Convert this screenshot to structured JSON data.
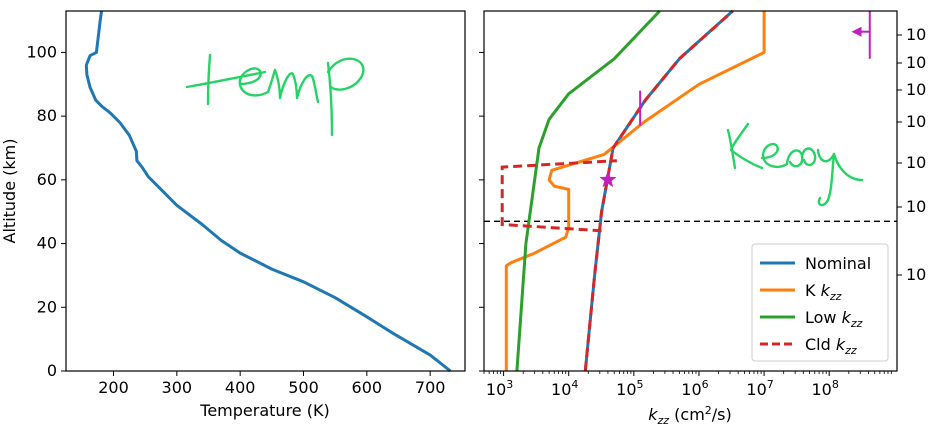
{
  "chart_data": [
    {
      "type": "line",
      "panel": "left",
      "xlabel": "Temperature (K)",
      "ylabel": "Altitude (km)",
      "xlim": [
        125,
        755
      ],
      "ylim": [
        0,
        113
      ],
      "xticks": [
        200,
        300,
        400,
        500,
        600,
        700
      ],
      "yticks": [
        0,
        20,
        40,
        60,
        80,
        100
      ],
      "annotation": "temp",
      "series": [
        {
          "color": "#1f77b4",
          "x": [
            732,
            700,
            640,
            600,
            550,
            500,
            450,
            400,
            370,
            340,
            300,
            270,
            255,
            245,
            237,
            236,
            225,
            210,
            195,
            182,
            172,
            163,
            158,
            157,
            163,
            173,
            176,
            179,
            181
          ],
          "y": [
            0,
            5,
            12,
            17,
            23,
            28,
            32,
            37,
            41,
            46,
            52,
            58,
            61,
            64,
            66,
            69,
            74,
            78,
            81,
            83,
            85,
            89,
            93,
            96,
            99,
            100,
            105,
            110,
            113
          ]
        }
      ]
    },
    {
      "type": "line",
      "panel": "right",
      "xlabel": "k_zz (cm²/s)",
      "xscale": "log",
      "xlim": [
        500,
        1100000000
      ],
      "ylim": [
        0,
        113
      ],
      "xticks": [
        1000,
        10000,
        100000,
        1000000,
        10000000,
        100000000
      ],
      "xtick_labels": [
        {
          "base": "10",
          "exp": "3"
        },
        {
          "base": "10",
          "exp": "4"
        },
        {
          "base": "10",
          "exp": "5"
        },
        {
          "base": "10",
          "exp": "6"
        },
        {
          "base": "10",
          "exp": "7"
        },
        {
          "base": "10",
          "exp": "8"
        }
      ],
      "right_tick_labels": [
        "10",
        "10",
        "10",
        "10",
        "10",
        "10",
        "10"
      ],
      "hline_altitude": 47,
      "annotation": "Keddy",
      "legend_position": "lower-right",
      "series": [
        {
          "name": "Nominal",
          "color": "#1f77b4",
          "dash": "solid",
          "x": [
            18000,
            25000,
            32000,
            48000,
            150000,
            500000,
            3300000
          ],
          "y": [
            0,
            30,
            50,
            70,
            85,
            98,
            113
          ]
        },
        {
          "name": "K k_zz",
          "color": "#ff7f0e",
          "dash": "solid",
          "x": [
            1100,
            1100,
            1300,
            3000,
            9000,
            10000,
            10000,
            6000,
            5000,
            5500,
            35000,
            140000,
            1000000,
            10000000,
            10000000
          ],
          "y": [
            0,
            33,
            34,
            37,
            42,
            45,
            57,
            58,
            60,
            63,
            68,
            78,
            90,
            100,
            113
          ]
        },
        {
          "name": "Low k_zz",
          "color": "#2ca02c",
          "dash": "solid",
          "x": [
            1600,
            2200,
            3500,
            5000,
            10000,
            50000,
            250000
          ],
          "y": [
            0,
            40,
            70,
            79,
            87,
            98,
            113
          ]
        },
        {
          "name": "Cld k_zz",
          "color": "#d62728",
          "dash": "dashed",
          "x": [
            18000,
            25000,
            32000,
            48000,
            150000,
            500000,
            3300000
          ],
          "y": [
            0,
            30,
            50,
            70,
            85,
            98,
            113
          ],
          "cloud_box_x": [
            32000,
            950,
            950,
            55000
          ],
          "cloud_box_y": [
            44,
            46,
            64,
            66
          ]
        }
      ],
      "markers": [
        {
          "type": "star",
          "color": "#c21fc2",
          "x": 40000,
          "y": 60
        }
      ],
      "magenta_marks": [
        {
          "type": "vertical-tick",
          "color": "#c21fc2",
          "x": 125000,
          "y_range": [
            77,
            88
          ]
        },
        {
          "type": "vertical-tick",
          "color": "#c21fc2",
          "x": 420000000,
          "y_range": [
            98,
            113
          ]
        },
        {
          "type": "arrow-left",
          "color": "#c21fc2",
          "x_from": 420000000,
          "x_to": 220000000,
          "y": 106.5
        }
      ]
    }
  ],
  "legend": {
    "entries": [
      {
        "label": "Nominal",
        "sub": ""
      },
      {
        "label": "K k",
        "sub": "zz"
      },
      {
        "label": "Low k",
        "sub": "zz"
      },
      {
        "label": "Cld k",
        "sub": "zz"
      }
    ]
  }
}
